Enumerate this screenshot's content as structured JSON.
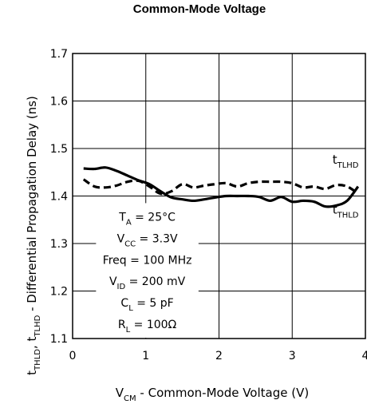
{
  "chart_data": {
    "type": "line",
    "title": "Common-Mode Voltage",
    "xlabel": {
      "parts": [
        {
          "text": "V",
          "sub": "CM"
        },
        {
          "text": " - Common-Mode Voltage (V)"
        }
      ]
    },
    "ylabel": {
      "parts": [
        {
          "text": "t",
          "sub": "THLD"
        },
        {
          "text": ", t",
          "sub": "TLHD"
        },
        {
          "text": " - Differential Propagation Delay (ns)"
        }
      ]
    },
    "xlim": [
      0,
      4
    ],
    "ylim": [
      1.1,
      1.7
    ],
    "x_ticks": [
      "0",
      "1",
      "2",
      "3",
      "4"
    ],
    "y_ticks": [
      "1.1",
      "1.2",
      "1.3",
      "1.4",
      "1.5",
      "1.6",
      "1.7"
    ],
    "grid": true,
    "series": [
      {
        "name": "tTLHD",
        "label": {
          "text": "t",
          "sub": "TLHD"
        },
        "style": "dashed",
        "x": [
          0.15,
          0.3,
          0.45,
          0.6,
          0.75,
          0.9,
          1.05,
          1.2,
          1.35,
          1.5,
          1.65,
          1.8,
          1.95,
          2.1,
          2.25,
          2.4,
          2.55,
          2.7,
          2.85,
          3.0,
          3.15,
          3.3,
          3.45,
          3.6,
          3.75,
          3.9
        ],
        "values": [
          1.435,
          1.42,
          1.418,
          1.422,
          1.43,
          1.432,
          1.42,
          1.405,
          1.41,
          1.425,
          1.418,
          1.422,
          1.425,
          1.427,
          1.42,
          1.427,
          1.43,
          1.43,
          1.43,
          1.427,
          1.418,
          1.42,
          1.415,
          1.423,
          1.42,
          1.405
        ]
      },
      {
        "name": "tTHLD",
        "label": {
          "text": "t",
          "sub": "THLD"
        },
        "style": "solid",
        "x": [
          0.15,
          0.3,
          0.45,
          0.6,
          0.75,
          0.9,
          1.05,
          1.2,
          1.35,
          1.5,
          1.65,
          1.8,
          1.95,
          2.1,
          2.25,
          2.4,
          2.55,
          2.7,
          2.85,
          3.0,
          3.15,
          3.3,
          3.45,
          3.6,
          3.75,
          3.9
        ],
        "values": [
          1.458,
          1.457,
          1.46,
          1.453,
          1.443,
          1.433,
          1.425,
          1.41,
          1.397,
          1.393,
          1.39,
          1.393,
          1.397,
          1.4,
          1.4,
          1.4,
          1.398,
          1.39,
          1.398,
          1.388,
          1.39,
          1.388,
          1.378,
          1.38,
          1.39,
          1.42
        ]
      }
    ],
    "conditions": [
      {
        "parts": [
          {
            "text": "T",
            "sub": "A"
          },
          {
            "text": " = 25°C"
          }
        ]
      },
      {
        "parts": [
          {
            "text": "V",
            "sub": "CC"
          },
          {
            "text": " = 3.3V"
          }
        ]
      },
      {
        "parts": [
          {
            "text": "Freq = 100 MHz"
          }
        ]
      },
      {
        "parts": [
          {
            "text": "V",
            "sub": "ID"
          },
          {
            "text": " = 200 mV"
          }
        ]
      },
      {
        "parts": [
          {
            "text": "C",
            "sub": "L"
          },
          {
            "text": " = 5 pF"
          }
        ]
      },
      {
        "parts": [
          {
            "text": "R",
            "sub": "L"
          },
          {
            "text": " = 100Ω"
          }
        ]
      }
    ]
  }
}
